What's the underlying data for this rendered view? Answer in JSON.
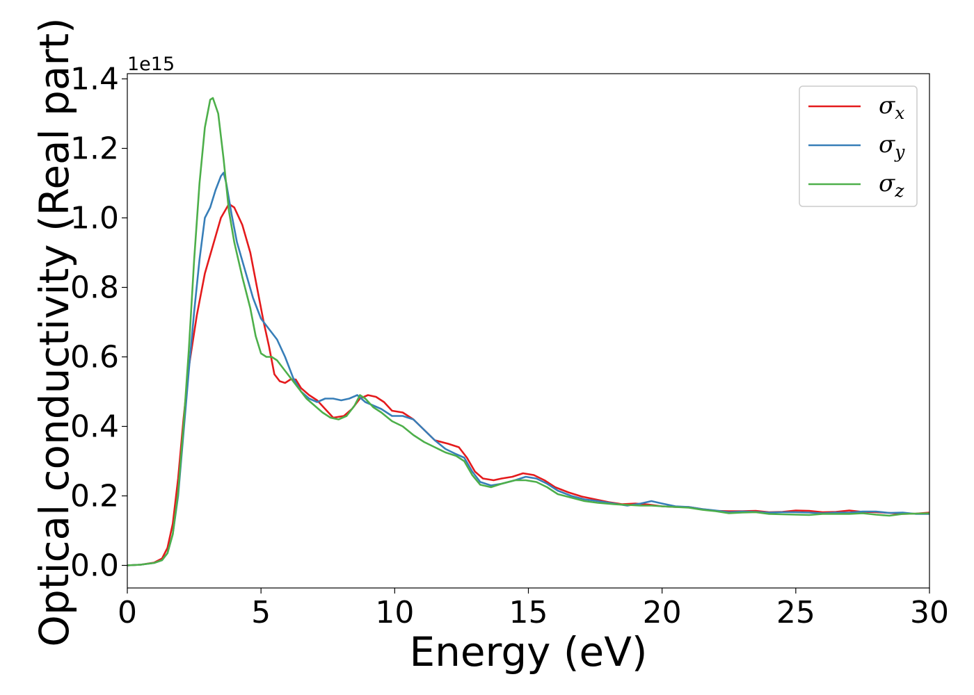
{
  "chart_data": {
    "type": "line",
    "title": "",
    "xlabel": "Energy (eV)",
    "ylabel": "Optical conductivity (Real part)",
    "y_offset_text": "1e15",
    "xlim": [
      0,
      30
    ],
    "ylim": [
      -0.065,
      1.415
    ],
    "x_ticks": [
      0,
      5,
      10,
      15,
      20,
      25,
      30
    ],
    "x_tick_labels": [
      "0",
      "5",
      "10",
      "15",
      "20",
      "25",
      "30"
    ],
    "y_ticks": [
      0.0,
      0.2,
      0.4,
      0.6,
      0.8,
      1.0,
      1.2,
      1.4
    ],
    "y_tick_labels": [
      "0.0",
      "0.2",
      "0.4",
      "0.6",
      "0.8",
      "1.0",
      "1.2",
      "1.4"
    ],
    "grid": false,
    "legend_position": "top-right",
    "series": [
      {
        "name": "σx",
        "subscript": "x",
        "color": "#e41a1c",
        "points": [
          [
            0,
            0
          ],
          [
            0.5,
            0.002
          ],
          [
            1.0,
            0.008
          ],
          [
            1.3,
            0.02
          ],
          [
            1.5,
            0.05
          ],
          [
            1.7,
            0.12
          ],
          [
            1.9,
            0.25
          ],
          [
            2.1,
            0.42
          ],
          [
            2.3,
            0.57
          ],
          [
            2.6,
            0.72
          ],
          [
            2.9,
            0.84
          ],
          [
            3.2,
            0.92
          ],
          [
            3.5,
            1.0
          ],
          [
            3.8,
            1.04
          ],
          [
            4.0,
            1.03
          ],
          [
            4.3,
            0.98
          ],
          [
            4.6,
            0.9
          ],
          [
            4.9,
            0.78
          ],
          [
            5.1,
            0.7
          ],
          [
            5.3,
            0.63
          ],
          [
            5.5,
            0.55
          ],
          [
            5.7,
            0.53
          ],
          [
            5.9,
            0.525
          ],
          [
            6.1,
            0.535
          ],
          [
            6.3,
            0.535
          ],
          [
            6.5,
            0.51
          ],
          [
            6.8,
            0.49
          ],
          [
            7.1,
            0.475
          ],
          [
            7.4,
            0.45
          ],
          [
            7.7,
            0.425
          ],
          [
            8.1,
            0.43
          ],
          [
            8.4,
            0.45
          ],
          [
            8.7,
            0.48
          ],
          [
            9.0,
            0.49
          ],
          [
            9.3,
            0.485
          ],
          [
            9.6,
            0.47
          ],
          [
            9.9,
            0.445
          ],
          [
            10.3,
            0.44
          ],
          [
            10.7,
            0.42
          ],
          [
            11.1,
            0.39
          ],
          [
            11.5,
            0.36
          ],
          [
            12.0,
            0.35
          ],
          [
            12.4,
            0.34
          ],
          [
            12.7,
            0.31
          ],
          [
            13.0,
            0.27
          ],
          [
            13.3,
            0.25
          ],
          [
            13.7,
            0.245
          ],
          [
            14.0,
            0.25
          ],
          [
            14.4,
            0.255
          ],
          [
            14.8,
            0.265
          ],
          [
            15.2,
            0.26
          ],
          [
            15.6,
            0.245
          ],
          [
            16.0,
            0.225
          ],
          [
            16.5,
            0.21
          ],
          [
            17.0,
            0.198
          ],
          [
            17.5,
            0.19
          ],
          [
            18.0,
            0.182
          ],
          [
            18.5,
            0.176
          ],
          [
            19.0,
            0.178
          ],
          [
            19.5,
            0.175
          ],
          [
            20.0,
            0.17
          ],
          [
            20.5,
            0.168
          ],
          [
            21.0,
            0.168
          ],
          [
            21.5,
            0.162
          ],
          [
            22.0,
            0.157
          ],
          [
            22.5,
            0.156
          ],
          [
            23.0,
            0.156
          ],
          [
            23.5,
            0.157
          ],
          [
            24.0,
            0.153
          ],
          [
            24.5,
            0.154
          ],
          [
            25.0,
            0.158
          ],
          [
            25.5,
            0.157
          ],
          [
            26.0,
            0.153
          ],
          [
            26.5,
            0.154
          ],
          [
            27.0,
            0.158
          ],
          [
            27.5,
            0.154
          ],
          [
            28.0,
            0.153
          ],
          [
            28.5,
            0.151
          ],
          [
            29.0,
            0.148
          ],
          [
            29.5,
            0.149
          ],
          [
            30.0,
            0.152
          ]
        ]
      },
      {
        "name": "σy",
        "subscript": "y",
        "color": "#377eb8",
        "points": [
          [
            0,
            0
          ],
          [
            0.5,
            0.002
          ],
          [
            1.0,
            0.007
          ],
          [
            1.3,
            0.015
          ],
          [
            1.5,
            0.035
          ],
          [
            1.7,
            0.09
          ],
          [
            1.9,
            0.2
          ],
          [
            2.1,
            0.38
          ],
          [
            2.3,
            0.56
          ],
          [
            2.5,
            0.73
          ],
          [
            2.7,
            0.88
          ],
          [
            2.9,
            1.0
          ],
          [
            3.1,
            1.03
          ],
          [
            3.3,
            1.08
          ],
          [
            3.5,
            1.12
          ],
          [
            3.6,
            1.13
          ],
          [
            3.7,
            1.1
          ],
          [
            3.9,
            1.01
          ],
          [
            4.1,
            0.93
          ],
          [
            4.4,
            0.85
          ],
          [
            4.7,
            0.77
          ],
          [
            5.0,
            0.71
          ],
          [
            5.3,
            0.68
          ],
          [
            5.6,
            0.65
          ],
          [
            5.9,
            0.6
          ],
          [
            6.2,
            0.54
          ],
          [
            6.5,
            0.5
          ],
          [
            6.8,
            0.48
          ],
          [
            7.1,
            0.47
          ],
          [
            7.4,
            0.48
          ],
          [
            7.7,
            0.48
          ],
          [
            8.0,
            0.475
          ],
          [
            8.3,
            0.48
          ],
          [
            8.6,
            0.49
          ],
          [
            8.9,
            0.47
          ],
          [
            9.2,
            0.46
          ],
          [
            9.5,
            0.45
          ],
          [
            9.9,
            0.43
          ],
          [
            10.3,
            0.43
          ],
          [
            10.7,
            0.42
          ],
          [
            11.1,
            0.39
          ],
          [
            11.5,
            0.36
          ],
          [
            11.9,
            0.335
          ],
          [
            12.3,
            0.32
          ],
          [
            12.6,
            0.31
          ],
          [
            12.9,
            0.27
          ],
          [
            13.2,
            0.24
          ],
          [
            13.6,
            0.23
          ],
          [
            14.0,
            0.235
          ],
          [
            14.5,
            0.245
          ],
          [
            14.9,
            0.255
          ],
          [
            15.3,
            0.25
          ],
          [
            15.7,
            0.235
          ],
          [
            16.1,
            0.215
          ],
          [
            16.6,
            0.2
          ],
          [
            17.1,
            0.19
          ],
          [
            17.6,
            0.185
          ],
          [
            18.2,
            0.178
          ],
          [
            18.7,
            0.172
          ],
          [
            19.2,
            0.178
          ],
          [
            19.6,
            0.185
          ],
          [
            20.0,
            0.178
          ],
          [
            20.5,
            0.17
          ],
          [
            21.0,
            0.168
          ],
          [
            21.5,
            0.162
          ],
          [
            22.0,
            0.158
          ],
          [
            22.5,
            0.153
          ],
          [
            23.0,
            0.155
          ],
          [
            23.5,
            0.154
          ],
          [
            24.0,
            0.152
          ],
          [
            24.5,
            0.153
          ],
          [
            25.0,
            0.153
          ],
          [
            25.5,
            0.152
          ],
          [
            26.0,
            0.15
          ],
          [
            26.5,
            0.152
          ],
          [
            27.0,
            0.152
          ],
          [
            27.5,
            0.155
          ],
          [
            28.0,
            0.155
          ],
          [
            28.5,
            0.151
          ],
          [
            29.0,
            0.152
          ],
          [
            29.5,
            0.148
          ],
          [
            30.0,
            0.148
          ]
        ]
      },
      {
        "name": "σz",
        "subscript": "z",
        "color": "#4daf4a",
        "points": [
          [
            0,
            0
          ],
          [
            0.5,
            0.002
          ],
          [
            1.0,
            0.007
          ],
          [
            1.3,
            0.015
          ],
          [
            1.5,
            0.035
          ],
          [
            1.7,
            0.09
          ],
          [
            1.9,
            0.21
          ],
          [
            2.1,
            0.4
          ],
          [
            2.3,
            0.62
          ],
          [
            2.5,
            0.88
          ],
          [
            2.7,
            1.1
          ],
          [
            2.9,
            1.26
          ],
          [
            3.1,
            1.34
          ],
          [
            3.2,
            1.345
          ],
          [
            3.4,
            1.3
          ],
          [
            3.6,
            1.17
          ],
          [
            3.8,
            1.02
          ],
          [
            4.0,
            0.93
          ],
          [
            4.3,
            0.83
          ],
          [
            4.6,
            0.74
          ],
          [
            4.8,
            0.66
          ],
          [
            5.0,
            0.61
          ],
          [
            5.2,
            0.6
          ],
          [
            5.4,
            0.6
          ],
          [
            5.6,
            0.59
          ],
          [
            5.8,
            0.57
          ],
          [
            6.1,
            0.54
          ],
          [
            6.4,
            0.51
          ],
          [
            6.7,
            0.48
          ],
          [
            7.0,
            0.46
          ],
          [
            7.3,
            0.44
          ],
          [
            7.6,
            0.425
          ],
          [
            7.9,
            0.42
          ],
          [
            8.2,
            0.43
          ],
          [
            8.5,
            0.46
          ],
          [
            8.7,
            0.49
          ],
          [
            8.9,
            0.48
          ],
          [
            9.2,
            0.455
          ],
          [
            9.5,
            0.44
          ],
          [
            9.9,
            0.415
          ],
          [
            10.3,
            0.4
          ],
          [
            10.7,
            0.375
          ],
          [
            11.1,
            0.355
          ],
          [
            11.5,
            0.34
          ],
          [
            11.9,
            0.325
          ],
          [
            12.3,
            0.315
          ],
          [
            12.6,
            0.3
          ],
          [
            12.9,
            0.26
          ],
          [
            13.2,
            0.232
          ],
          [
            13.6,
            0.225
          ],
          [
            14.0,
            0.235
          ],
          [
            14.5,
            0.245
          ],
          [
            14.9,
            0.245
          ],
          [
            15.3,
            0.24
          ],
          [
            15.7,
            0.225
          ],
          [
            16.1,
            0.205
          ],
          [
            16.6,
            0.195
          ],
          [
            17.1,
            0.185
          ],
          [
            17.6,
            0.18
          ],
          [
            18.2,
            0.176
          ],
          [
            18.7,
            0.174
          ],
          [
            19.2,
            0.172
          ],
          [
            19.6,
            0.172
          ],
          [
            20.0,
            0.17
          ],
          [
            20.5,
            0.168
          ],
          [
            21.0,
            0.166
          ],
          [
            21.5,
            0.16
          ],
          [
            22.0,
            0.156
          ],
          [
            22.5,
            0.15
          ],
          [
            23.0,
            0.152
          ],
          [
            23.5,
            0.153
          ],
          [
            24.0,
            0.148
          ],
          [
            24.5,
            0.147
          ],
          [
            25.0,
            0.146
          ],
          [
            25.5,
            0.145
          ],
          [
            26.0,
            0.148
          ],
          [
            26.5,
            0.148
          ],
          [
            27.0,
            0.148
          ],
          [
            27.5,
            0.15
          ],
          [
            28.0,
            0.146
          ],
          [
            28.5,
            0.143
          ],
          [
            29.0,
            0.148
          ],
          [
            29.5,
            0.149
          ],
          [
            30.0,
            0.15
          ]
        ]
      }
    ]
  }
}
